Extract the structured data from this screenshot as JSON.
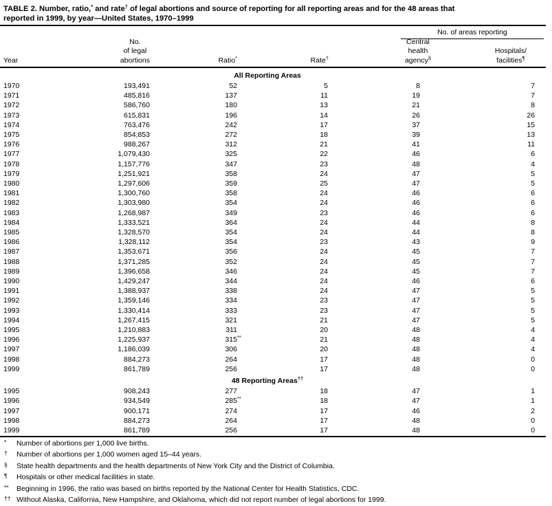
{
  "title": {
    "line1_segments": [
      {
        "text": "TABLE 2. Number, ratio,"
      },
      {
        "sup": "*"
      },
      {
        "text": " and rate"
      },
      {
        "sup": "†"
      },
      {
        "text": " of legal abortions and source of reporting for all reporting areas and for the 48 areas that"
      }
    ],
    "line2": "reported in 1999, by year—United States, 1970–1999"
  },
  "header": {
    "span_label": "No. of areas reporting",
    "columns": {
      "year": "Year",
      "abortions_lines": [
        "No.",
        "of legal",
        "abortions"
      ],
      "ratio": "Ratio*",
      "rate": "Rate†",
      "central_lines": [
        "Central",
        "health",
        "agency§"
      ],
      "hospitals_lines": [
        "Hospitals/",
        "facilities¶"
      ]
    }
  },
  "table": {
    "sections": [
      {
        "label": "All Reporting Areas",
        "rows": [
          [
            "1970",
            "193,491",
            "52",
            "5",
            "8",
            "7"
          ],
          [
            "1971",
            "485,816",
            "137",
            "11",
            "19",
            "7"
          ],
          [
            "1972",
            "586,760",
            "180",
            "13",
            "21",
            "8"
          ],
          [
            "1973",
            "615,831",
            "196",
            "14",
            "26",
            "26"
          ],
          [
            "1974",
            "763,476",
            "242",
            "17",
            "37",
            "15"
          ],
          [
            "1975",
            "854,853",
            "272",
            "18",
            "39",
            "13"
          ],
          [
            "1976",
            "988,267",
            "312",
            "21",
            "41",
            "11"
          ],
          [
            "1977",
            "1,079,430",
            "325",
            "22",
            "46",
            "6"
          ],
          [
            "1978",
            "1,157,776",
            "347",
            "23",
            "48",
            "4"
          ],
          [
            "1979",
            "1,251,921",
            "358",
            "24",
            "47",
            "5"
          ],
          [
            "1980",
            "1,297,606",
            "359",
            "25",
            "47",
            "5"
          ],
          [
            "1981",
            "1,300,760",
            "358",
            "24",
            "46",
            "6"
          ],
          [
            "1982",
            "1,303,980",
            "354",
            "24",
            "46",
            "6"
          ],
          [
            "1983",
            "1,268,987",
            "349",
            "23",
            "46",
            "6"
          ],
          [
            "1984",
            "1,333,521",
            "364",
            "24",
            "44",
            "8"
          ],
          [
            "1985",
            "1,328,570",
            "354",
            "24",
            "44",
            "8"
          ],
          [
            "1986",
            "1,328,112",
            "354",
            "23",
            "43",
            "9"
          ],
          [
            "1987",
            "1,353,671",
            "356",
            "24",
            "45",
            "7"
          ],
          [
            "1988",
            "1,371,285",
            "352",
            "24",
            "45",
            "7"
          ],
          [
            "1989",
            "1,396,658",
            "346",
            "24",
            "45",
            "7"
          ],
          [
            "1990",
            "1,429,247",
            "344",
            "24",
            "46",
            "6"
          ],
          [
            "1991",
            "1,388,937",
            "338",
            "24",
            "47",
            "5"
          ],
          [
            "1992",
            "1,359,146",
            "334",
            "23",
            "47",
            "5"
          ],
          [
            "1993",
            "1,330,414",
            "333",
            "23",
            "47",
            "5"
          ],
          [
            "1994",
            "1,267,415",
            "321",
            "21",
            "47",
            "5"
          ],
          [
            "1995",
            "1,210,883",
            "311",
            "20",
            "48",
            "4"
          ],
          [
            "1996",
            "1,225,937",
            "315**",
            "21",
            "48",
            "4"
          ],
          [
            "1997",
            "1,186,039",
            "306",
            "20",
            "48",
            "4"
          ],
          [
            "1998",
            "884,273",
            "264",
            "17",
            "48",
            "0"
          ],
          [
            "1999",
            "861,789",
            "256",
            "17",
            "48",
            "0"
          ]
        ]
      },
      {
        "label": "48 Reporting Areas††",
        "rows": [
          [
            "1995",
            "908,243",
            "277",
            "18",
            "47",
            "1"
          ],
          [
            "1996",
            "934,549",
            "285**",
            "18",
            "47",
            "1"
          ],
          [
            "1997",
            "900,171",
            "274",
            "17",
            "46",
            "2"
          ],
          [
            "1998",
            "884,273",
            "264",
            "17",
            "48",
            "0"
          ],
          [
            "1999",
            "861,789",
            "256",
            "17",
            "48",
            "0"
          ]
        ]
      }
    ]
  },
  "footnotes": [
    {
      "marker": "*",
      "text": "Number of abortions per 1,000 live births."
    },
    {
      "marker": "†",
      "text": "Number of abortions per 1,000 women aged 15–44 years."
    },
    {
      "marker": "§",
      "text": "State health departments and the health departments of New York City and the District of Columbia."
    },
    {
      "marker": "¶",
      "text": "Hospitals or other medical facilities in state."
    },
    {
      "marker": "**",
      "text": "Beginning in 1996, the ratio was based on births reported by the National Center for Health Statistics, CDC."
    },
    {
      "marker": "††",
      "text": "Without Alaska, California, New Hampshire, and Oklahoma, which did not report number of legal abortions for 1999."
    }
  ],
  "colors": {
    "text": "#000000",
    "background": "#ffffff",
    "rule": "#000000"
  }
}
